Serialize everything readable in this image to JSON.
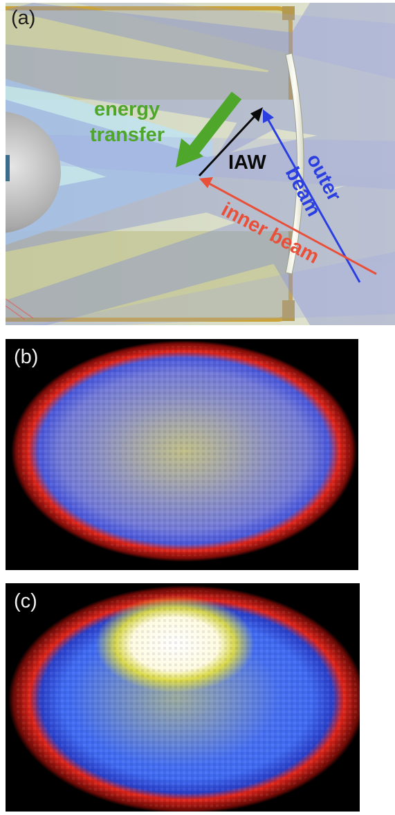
{
  "figure": {
    "panel_a": {
      "label": "(a)",
      "annotations": {
        "energy_transfer_line1": "energy",
        "energy_transfer_line2": "transfer",
        "iaw": "IAW",
        "outer_beam_line1": "outer",
        "outer_beam_line2": "beam",
        "inner_beam": "inner beam"
      },
      "colors": {
        "energy_transfer": "#4ea62a",
        "iaw": "#0a0a0a",
        "outer_beam": "#2b3fe0",
        "inner_beam": "#e8503a",
        "hohlraum_wall": "#c9a23a",
        "beam_fill": "#8fa0d8"
      }
    },
    "panel_b": {
      "label": "(b)",
      "colors": {
        "rim": "#e02418",
        "body": "#6f78e0",
        "speckle": "#e6e23a"
      }
    },
    "panel_c": {
      "label": "(c)",
      "colors": {
        "rim": "#e02418",
        "body": "#3f6af0",
        "speckle": "#e6e23a",
        "hotspot": "#ffffff"
      }
    }
  }
}
